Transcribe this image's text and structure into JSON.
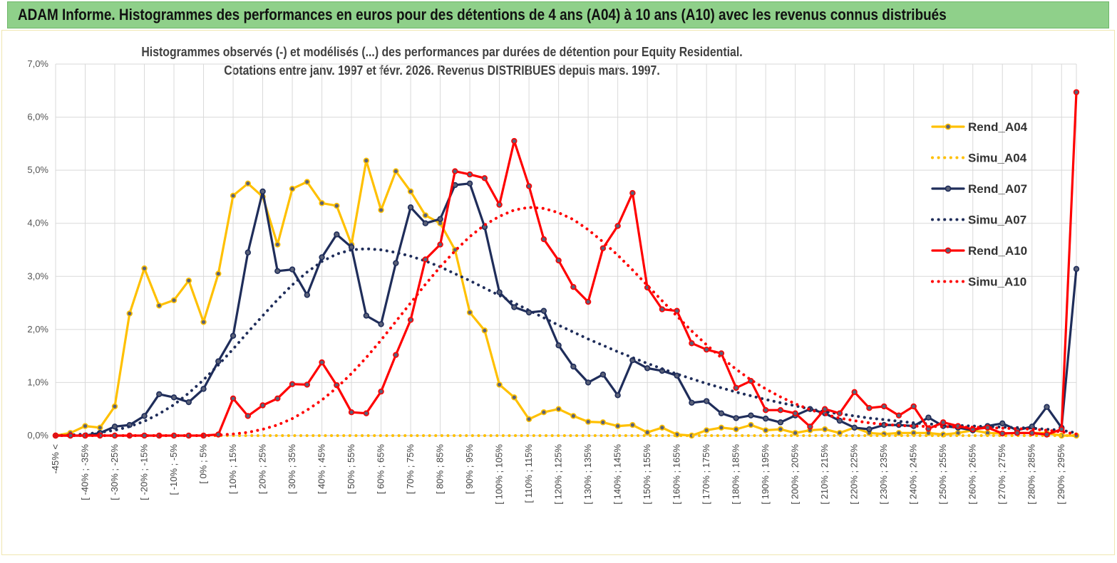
{
  "banner": {
    "title": "ADAM Informe. Histogrammes des performances en euros pour des détentions de 4 ans (A04) à 10 ans (A10) avec les revenus connus distribués"
  },
  "chart_data": {
    "type": "line",
    "title_line1": "Histogrammes observés (-)  et modélisés (...) des performances  par durées de détention pour Equity Residential.",
    "title_line2": "Cotations entre janv. 1997 et févr.  2026. Revenus DISTRIBUES depuis mars. 1997.",
    "ylim": [
      0,
      7
    ],
    "y_ticks": [
      "0,0%",
      "1,0%",
      "2,0%",
      "3,0%",
      "4,0%",
      "5,0%",
      "6,0%",
      "7,0%"
    ],
    "x_labels": [
      "-45% <",
      "[ -40% ; -35%",
      "[ -30% ; -25%",
      "[ -20% ; -15%",
      "[ -10% ; -5%",
      "[ 0% ; 5%",
      "[ 10% ; 15%",
      "[ 20% ; 25%",
      "[ 30% ; 35%",
      "[ 40% ; 45%",
      "[ 50% ; 55%",
      "[ 60% ; 65%",
      "[ 70% ; 75%",
      "[ 80% ; 85%",
      "[ 90% ; 95%",
      "[ 100% ; 105%",
      "[ 110% ; 115%",
      "[ 120% ; 125%",
      "[ 130% ; 135%",
      "[ 140% ; 145%",
      "[ 150% ; 155%",
      "[ 160% ; 165%",
      "[ 170% ; 175%",
      "[ 180% ; 185%",
      "[ 190% ; 195%",
      "[ 200% ; 205%",
      "[ 210% ; 215%",
      "[ 220% ; 225%",
      "[ 230% ; 235%",
      "[ 240% ; 245%",
      "[ 250% ; 255%",
      "[ 260% ; 265%",
      "[ 270% ; 275%",
      "[ 280% ; 285%",
      "[ 290% ; 295%"
    ],
    "n_points": 70,
    "series": [
      {
        "name": "Rend_A04",
        "color": "#ffc000",
        "style": "solid",
        "markers": true,
        "values": [
          0.0,
          0.05,
          0.18,
          0.15,
          0.55,
          2.3,
          3.15,
          2.45,
          2.55,
          2.92,
          2.14,
          3.05,
          4.52,
          4.75,
          4.5,
          3.6,
          4.65,
          4.78,
          4.38,
          4.33,
          3.6,
          5.18,
          4.25,
          4.98,
          4.6,
          4.15,
          4.0,
          3.5,
          2.32,
          1.98,
          0.96,
          0.72,
          0.31,
          0.44,
          0.5,
          0.37,
          0.26,
          0.25,
          0.18,
          0.2,
          0.06,
          0.15,
          0.02,
          0.0,
          0.1,
          0.15,
          0.12,
          0.2,
          0.1,
          0.12,
          0.05,
          0.1,
          0.12,
          0.05,
          0.15,
          0.05,
          0.03,
          0.05,
          0.05,
          0.05,
          0.02,
          0.05,
          0.1,
          0.05,
          0.04,
          0.05,
          0.05,
          0.05,
          0.0,
          0.0
        ]
      },
      {
        "name": "Simu_A04",
        "color": "#ffc000",
        "style": "dotted",
        "markers": false,
        "values": [
          0.0,
          0.0,
          0.0,
          0.0,
          0.0,
          0.0,
          0.0,
          0.0,
          0.0,
          0.0,
          0.0,
          0.0,
          0.0,
          0.0,
          0.0,
          0.0,
          0.0,
          0.0,
          0.0,
          0.0,
          0.0,
          0.0,
          0.0,
          0.0,
          0.0,
          0.0,
          0.0,
          0.0,
          0.0,
          0.0,
          0.0,
          0.0,
          0.0,
          0.0,
          0.0,
          0.0,
          0.0,
          0.0,
          0.0,
          0.0,
          0.0,
          0.0,
          0.0,
          0.0,
          0.0,
          0.0,
          0.0,
          0.0,
          0.0,
          0.0,
          0.0,
          0.0,
          0.0,
          0.0,
          0.0,
          0.0,
          0.0,
          0.0,
          0.0,
          0.0,
          0.0,
          0.0,
          0.0,
          0.0,
          0.0,
          0.0,
          0.0,
          0.0,
          0.0,
          0.0
        ]
      },
      {
        "name": "Rend_A07",
        "color": "#1f2d5a",
        "style": "solid",
        "markers": true,
        "values": [
          0.0,
          0.0,
          0.0,
          0.05,
          0.17,
          0.2,
          0.37,
          0.78,
          0.72,
          0.63,
          0.88,
          1.4,
          1.88,
          3.45,
          4.6,
          3.1,
          3.13,
          2.65,
          3.36,
          3.79,
          3.55,
          2.26,
          2.1,
          3.25,
          4.3,
          4.0,
          4.08,
          4.72,
          4.75,
          3.93,
          2.7,
          2.42,
          2.32,
          2.35,
          1.7,
          1.3,
          1.0,
          1.15,
          0.76,
          1.42,
          1.27,
          1.22,
          1.13,
          0.62,
          0.65,
          0.42,
          0.33,
          0.38,
          0.32,
          0.25,
          0.38,
          0.5,
          0.42,
          0.28,
          0.15,
          0.12,
          0.2,
          0.2,
          0.18,
          0.34,
          0.18,
          0.15,
          0.1,
          0.18,
          0.23,
          0.1,
          0.17,
          0.54,
          0.15,
          3.14
        ]
      },
      {
        "name": "Simu_A07",
        "color": "#1f2d5a",
        "style": "dotted",
        "markers": false,
        "values": [
          0.0,
          0.01,
          0.03,
          0.06,
          0.1,
          0.17,
          0.27,
          0.41,
          0.58,
          0.8,
          1.05,
          1.33,
          1.63,
          1.95,
          2.26,
          2.56,
          2.84,
          3.08,
          3.28,
          3.42,
          3.5,
          3.52,
          3.5,
          3.45,
          3.38,
          3.29,
          3.18,
          3.05,
          2.92,
          2.78,
          2.64,
          2.5,
          2.36,
          2.22,
          2.08,
          1.95,
          1.82,
          1.7,
          1.58,
          1.47,
          1.36,
          1.26,
          1.16,
          1.07,
          0.98,
          0.9,
          0.82,
          0.75,
          0.68,
          0.62,
          0.56,
          0.5,
          0.45,
          0.41,
          0.37,
          0.33,
          0.3,
          0.27,
          0.24,
          0.22,
          0.2,
          0.19,
          0.18,
          0.17,
          0.16,
          0.15,
          0.14,
          0.12,
          0.1,
          0.05
        ]
      },
      {
        "name": "Rend_A10",
        "color": "#ff0000",
        "style": "solid",
        "markers": true,
        "values": [
          0.0,
          0.0,
          0.0,
          0.0,
          0.0,
          0.0,
          0.0,
          0.0,
          0.0,
          0.0,
          0.0,
          0.02,
          0.7,
          0.37,
          0.57,
          0.7,
          0.97,
          0.96,
          1.38,
          0.95,
          0.44,
          0.42,
          0.83,
          1.52,
          2.18,
          3.32,
          3.6,
          4.98,
          4.92,
          4.85,
          4.35,
          5.55,
          4.7,
          3.7,
          3.3,
          2.8,
          2.52,
          3.53,
          3.95,
          4.57,
          2.79,
          2.38,
          2.35,
          1.74,
          1.62,
          1.55,
          0.9,
          1.03,
          0.48,
          0.48,
          0.42,
          0.17,
          0.5,
          0.42,
          0.82,
          0.52,
          0.55,
          0.38,
          0.55,
          0.13,
          0.25,
          0.18,
          0.12,
          0.15,
          0.04,
          0.05,
          0.05,
          0.02,
          0.12,
          6.47
        ]
      },
      {
        "name": "Simu_A10",
        "color": "#ff0000",
        "style": "dotted",
        "markers": false,
        "values": [
          0.0,
          0.0,
          0.0,
          0.0,
          0.0,
          0.0,
          0.0,
          0.0,
          0.0,
          0.0,
          0.0,
          0.01,
          0.03,
          0.06,
          0.12,
          0.2,
          0.32,
          0.48,
          0.67,
          0.9,
          1.17,
          1.47,
          1.8,
          2.15,
          2.5,
          2.85,
          3.18,
          3.48,
          3.75,
          3.97,
          4.13,
          4.25,
          4.3,
          4.28,
          4.2,
          4.07,
          3.88,
          3.65,
          3.4,
          3.12,
          2.83,
          2.54,
          2.25,
          1.97,
          1.71,
          1.47,
          1.25,
          1.05,
          0.88,
          0.73,
          0.6,
          0.49,
          0.4,
          0.33,
          0.28,
          0.24,
          0.21,
          0.19,
          0.18,
          0.17,
          0.17,
          0.16,
          0.16,
          0.15,
          0.14,
          0.13,
          0.12,
          0.1,
          0.07,
          0.03
        ]
      }
    ]
  }
}
